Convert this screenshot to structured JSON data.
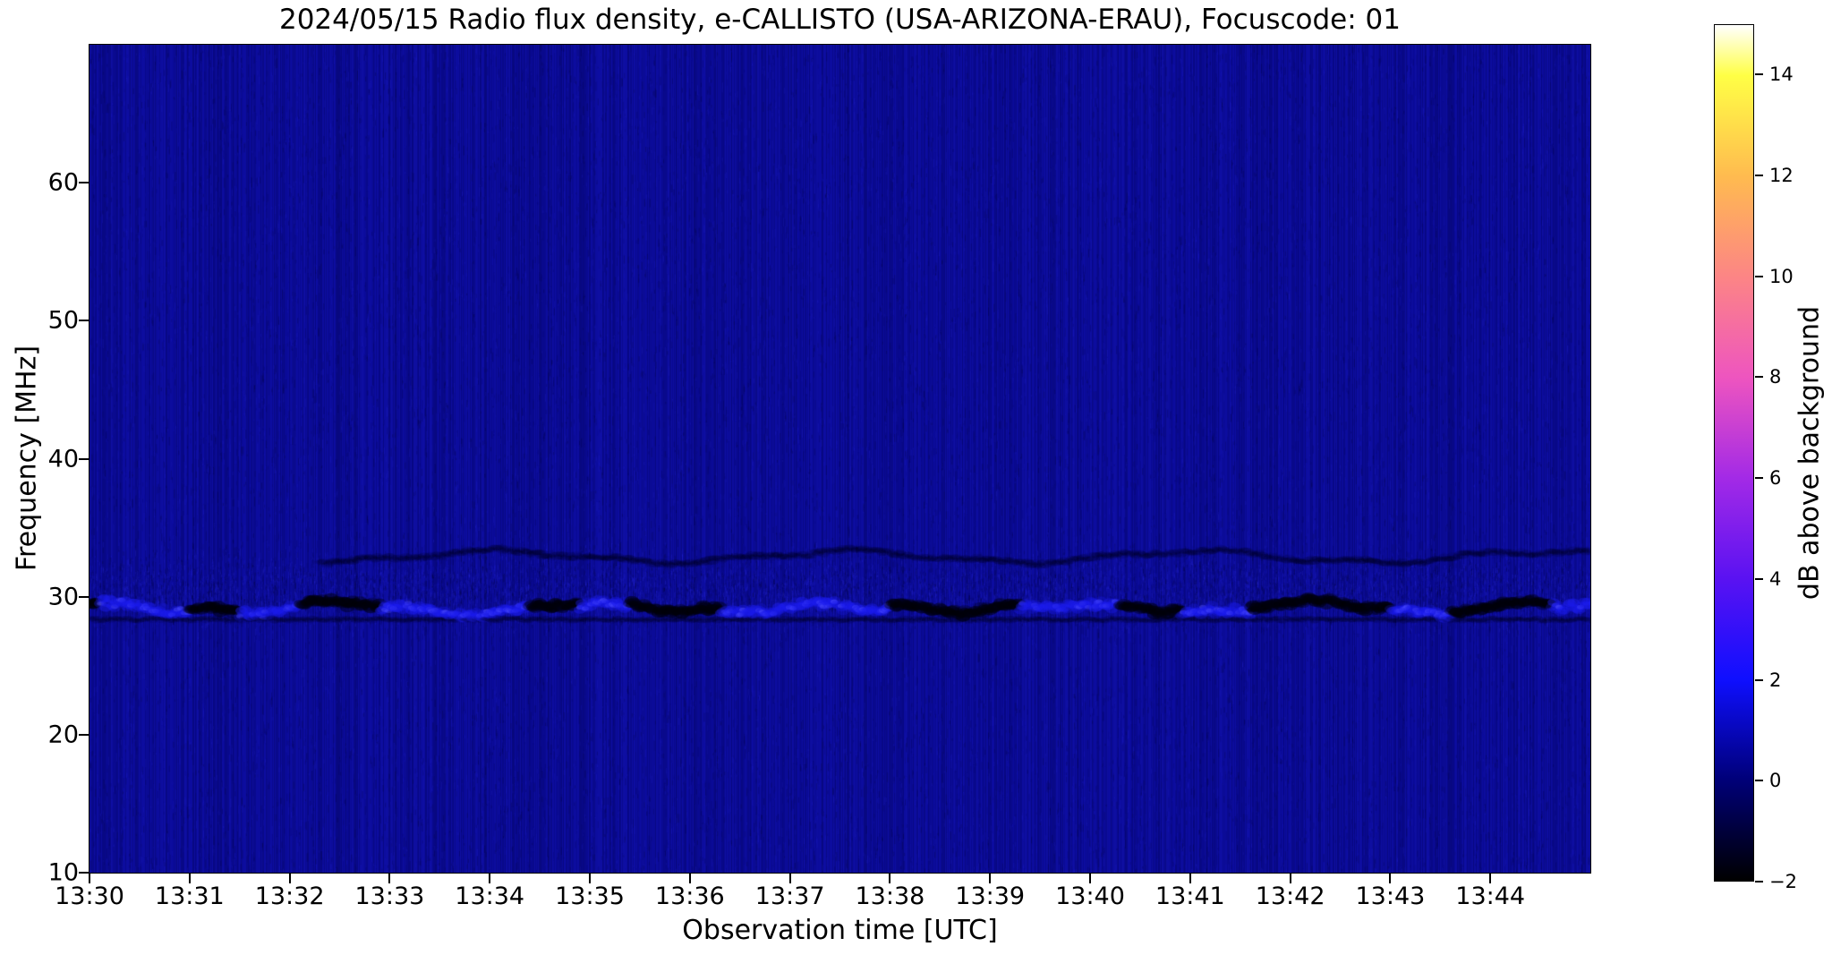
{
  "chart_data": {
    "type": "heatmap",
    "title": "2024/05/15  Radio flux density, e-CALLISTO (USA-ARIZONA-ERAU), Focuscode: 01",
    "xlabel": "Observation time [UTC]",
    "ylabel": "Frequency [MHz]",
    "colorbar_label": "dB above background",
    "x_ticks": [
      "13:30",
      "13:31",
      "13:32",
      "13:33",
      "13:34",
      "13:35",
      "13:36",
      "13:37",
      "13:38",
      "13:39",
      "13:40",
      "13:41",
      "13:42",
      "13:43",
      "13:44"
    ],
    "x_range_minutes": [
      0,
      15
    ],
    "y_ticks": [
      60,
      50,
      40,
      30,
      20,
      10
    ],
    "y_range": [
      10,
      70
    ],
    "colorbar_ticks": [
      14,
      12,
      10,
      8,
      6,
      4,
      2,
      0,
      -2
    ],
    "colorbar_range": [
      -2,
      15
    ],
    "colormap_stops": [
      [
        15,
        "#ffffff"
      ],
      [
        14,
        "#ffff45"
      ],
      [
        12,
        "#ffbb4f"
      ],
      [
        10,
        "#fc8585"
      ],
      [
        8,
        "#ee55bf"
      ],
      [
        6,
        "#a32ae6"
      ],
      [
        4,
        "#5a12f2"
      ],
      [
        2,
        "#0f0fff"
      ],
      [
        0,
        "#000078"
      ],
      [
        -2,
        "#000000"
      ]
    ],
    "colors": {
      "plot_background": "#0b0b9a",
      "band_bright": "#1c1cee",
      "band_dark": "#00000c"
    },
    "background_level_db": 0.5,
    "noise_seed": 1337,
    "grid": "off",
    "features": [
      {
        "name": "rfi-band",
        "freq_mhz": [
          27.8,
          30.6
        ],
        "center_freq_mhz": 29.1,
        "description": "Wavy horizontal interference band alternating bright-blue enhancements (~2 dB) and dark below-background patches (~-2 dB)",
        "segments_bright": [
          [
            0.1,
            1.0
          ],
          [
            1.5,
            2.1
          ],
          [
            2.9,
            4.4
          ],
          [
            4.9,
            5.4
          ],
          [
            6.3,
            8.0
          ],
          [
            9.3,
            10.3
          ],
          [
            10.9,
            11.6
          ],
          [
            13.0,
            13.6
          ],
          [
            14.6,
            15.0
          ]
        ],
        "segments_dark": [
          [
            0.0,
            0.1
          ],
          [
            1.0,
            1.5
          ],
          [
            2.1,
            2.9
          ],
          [
            4.4,
            4.9
          ],
          [
            5.4,
            6.3
          ],
          [
            8.0,
            9.3
          ],
          [
            10.3,
            10.9
          ],
          [
            11.6,
            13.0
          ],
          [
            13.6,
            14.6
          ]
        ]
      },
      {
        "name": "faint-dark-trace",
        "freq_mhz": [
          32.2,
          33.6
        ],
        "center_freq_mhz": 32.9,
        "t_range": [
          2.3,
          15
        ],
        "description": "Faint darker wavy trace above the main band"
      }
    ]
  }
}
